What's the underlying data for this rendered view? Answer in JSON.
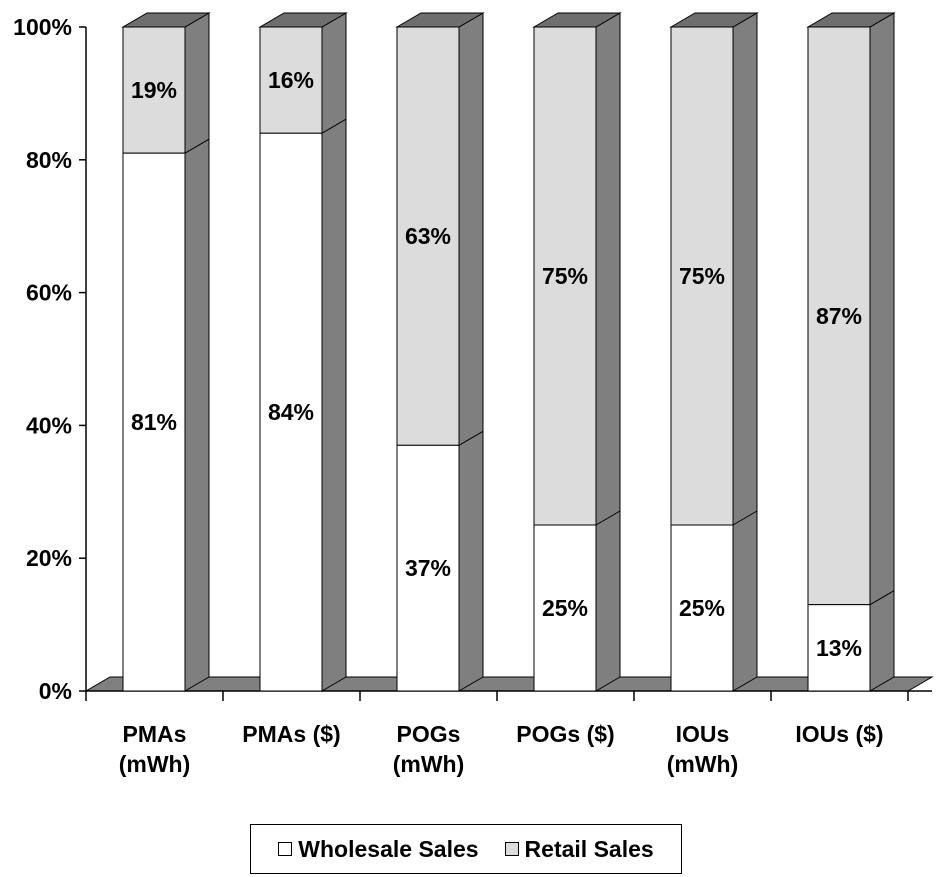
{
  "chart_data": {
    "type": "bar",
    "stacked": true,
    "three_d": true,
    "categories": [
      "PMAs (mWh)",
      "PMAs  ($)",
      "POGs (mWh)",
      "POGs  ($)",
      "IOUs (mWh)",
      "IOUs  ($)"
    ],
    "series": [
      {
        "name": "Wholesale Sales",
        "values": [
          81,
          84,
          37,
          25,
          25,
          13
        ],
        "labels": [
          "81%",
          "84%",
          "37%",
          "25%",
          "25%",
          "13%"
        ],
        "color": "#ffffff"
      },
      {
        "name": "Retail Sales",
        "values": [
          19,
          16,
          63,
          75,
          75,
          87
        ],
        "labels": [
          "19%",
          "16%",
          "63%",
          "75%",
          "75%",
          "87%"
        ],
        "color": "#dcdcdc"
      }
    ],
    "ylim": [
      0,
      100
    ],
    "yticks": [
      "0%",
      "20%",
      "40%",
      "60%",
      "80%",
      "100%"
    ],
    "ytick_values": [
      0,
      20,
      40,
      60,
      80,
      100
    ],
    "grid": false,
    "legend_position": "bottom",
    "side_color": "#7f7f7f",
    "top_color": "#6e6e6e",
    "floor_color": "#808080"
  },
  "legend": {
    "items": [
      {
        "label": "Wholesale Sales",
        "color": "#ffffff"
      },
      {
        "label": "Retail Sales",
        "color": "#dcdcdc"
      }
    ]
  }
}
